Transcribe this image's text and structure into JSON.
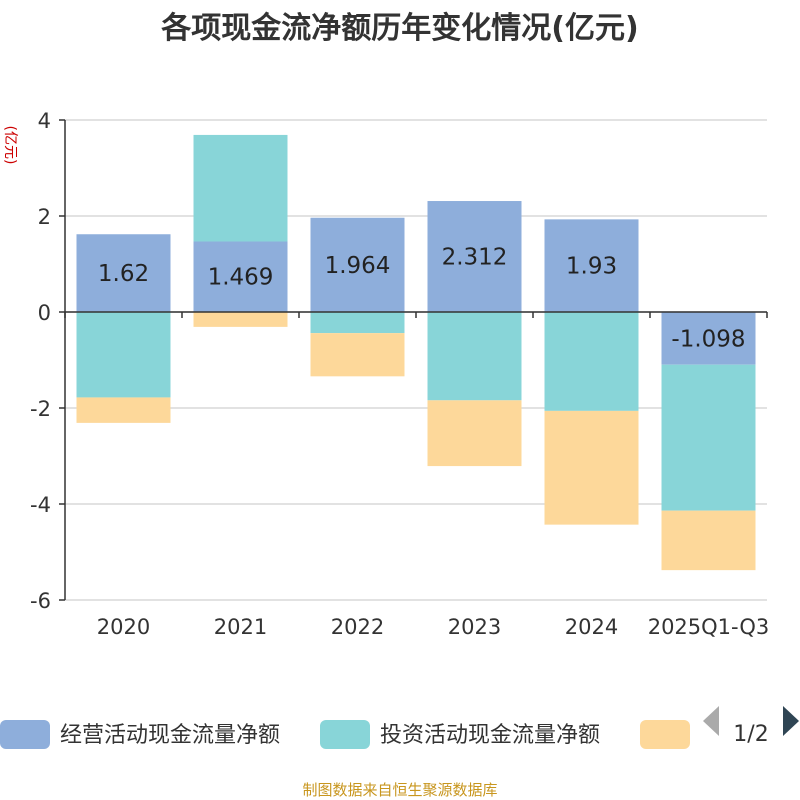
{
  "chart_data": {
    "type": "bar",
    "stacked": true,
    "title": "各项现金流净额历年变化情况(亿元)",
    "ylabel": "(亿元)",
    "ylim": [
      -6,
      4
    ],
    "yticks": [
      -6,
      -4,
      -2,
      0,
      2,
      4
    ],
    "ytick_labels": [
      "-6",
      "-4",
      "-2",
      "0",
      "2",
      "4"
    ],
    "grid": true,
    "categories": [
      "2020",
      "2021",
      "2022",
      "2023",
      "2024",
      "2025Q1-Q3"
    ],
    "series": [
      {
        "name": "经营活动现金流量净额",
        "color": "#8eaedb",
        "values": [
          1.62,
          1.469,
          1.964,
          2.312,
          1.93,
          -1.098
        ],
        "labels": [
          "1.62",
          "1.469",
          "1.964",
          "2.312",
          "1.93",
          "-1.098"
        ]
      },
      {
        "name": "投资活动现金流量净额",
        "color": "#88d5d8",
        "values": [
          -1.78,
          2.22,
          -0.44,
          -1.84,
          -2.06,
          -3.04
        ]
      },
      {
        "name": "",
        "color": "#fdd89a",
        "values": [
          -0.53,
          -0.31,
          -0.9,
          -1.37,
          -2.37,
          -1.24
        ]
      }
    ],
    "legend": {
      "position": "bottom",
      "page": "1/2",
      "items": [
        "经营活动现金流量净额",
        "投资活动现金流量净额",
        ""
      ]
    }
  },
  "footer": {
    "source": "制图数据来自恒生聚源数据库"
  },
  "legend_nav": {
    "prev_icon": "triangle-left-icon",
    "next_icon": "triangle-right-icon"
  }
}
